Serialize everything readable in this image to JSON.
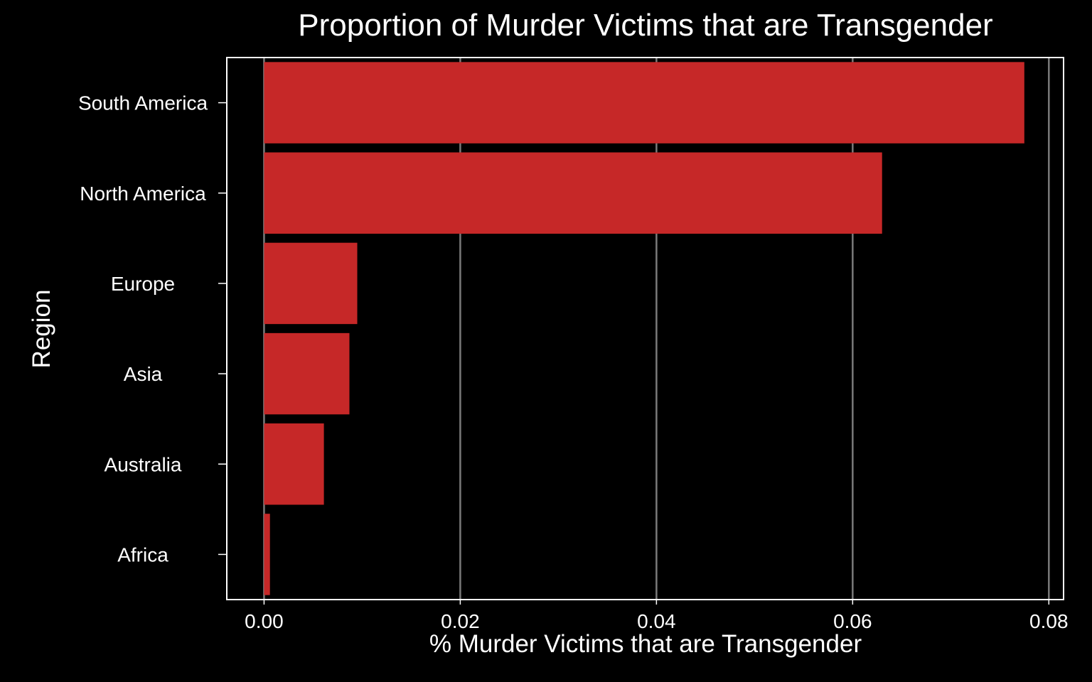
{
  "chart_data": {
    "type": "bar",
    "orientation": "horizontal",
    "title": "Proportion of Murder Victims that are Transgender",
    "xlabel": "% Murder Victims that are Transgender",
    "ylabel": "Region",
    "categories": [
      "South America",
      "North America",
      "Europe",
      "Asia",
      "Australia",
      "Africa"
    ],
    "values": [
      0.0775,
      0.063,
      0.0095,
      0.0087,
      0.0061,
      0.0006
    ],
    "xlim": [
      -0.0038,
      0.0815
    ],
    "xticks": [
      0,
      0.02,
      0.04,
      0.06,
      0.08
    ],
    "xtick_labels": [
      "0.00",
      "0.02",
      "0.04",
      "0.06",
      "0.08"
    ],
    "grid": "vertical major gridlines",
    "legend": "none",
    "colors": {
      "background": "#000000",
      "bar": "#c62828",
      "text": "#ffffff",
      "grid": "#7a7a7a",
      "frame": "#ffffff"
    }
  }
}
